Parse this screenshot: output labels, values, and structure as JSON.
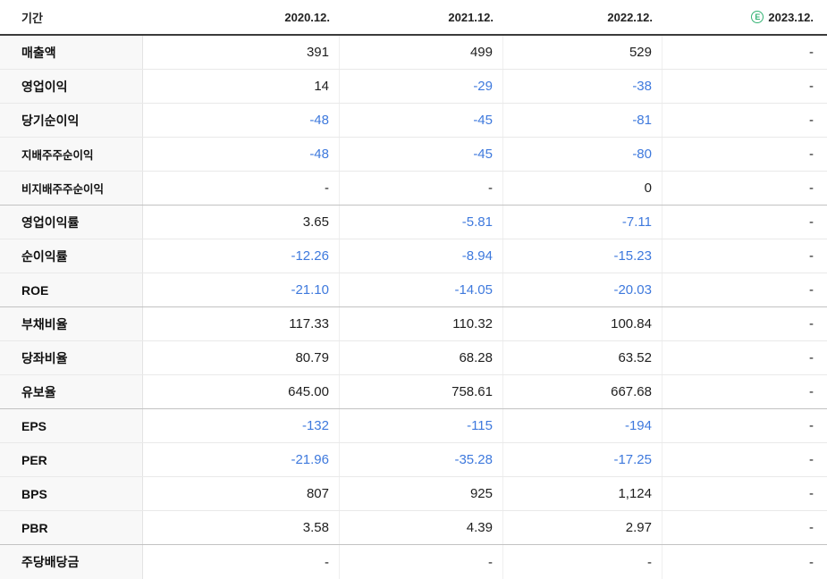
{
  "colors": {
    "negative_value": "#3e79dd",
    "positive_value": "#1e1e1e",
    "estimate_green": "#35b374",
    "label_column_bg": "#f8f8f8",
    "header_rule": "#3b3b3b"
  },
  "table": {
    "header": {
      "period_label": "기간",
      "estimate_badge": "E",
      "columns": [
        "2020.12.",
        "2021.12.",
        "2022.12.",
        "2023.12."
      ]
    },
    "rows": [
      {
        "label": "매출액",
        "sub": false,
        "group_end": false,
        "values": [
          "391",
          "499",
          "529",
          "-"
        ]
      },
      {
        "label": "영업이익",
        "sub": false,
        "group_end": false,
        "values": [
          "14",
          "-29",
          "-38",
          "-"
        ]
      },
      {
        "label": "당기순이익",
        "sub": false,
        "group_end": false,
        "values": [
          "-48",
          "-45",
          "-81",
          "-"
        ]
      },
      {
        "label": "지배주주순이익",
        "sub": true,
        "group_end": false,
        "values": [
          "-48",
          "-45",
          "-80",
          "-"
        ]
      },
      {
        "label": "비지배주주순이익",
        "sub": true,
        "group_end": true,
        "values": [
          "-",
          "-",
          "0",
          "-"
        ]
      },
      {
        "label": "영업이익률",
        "sub": false,
        "group_end": false,
        "values": [
          "3.65",
          "-5.81",
          "-7.11",
          "-"
        ]
      },
      {
        "label": "순이익률",
        "sub": false,
        "group_end": false,
        "values": [
          "-12.26",
          "-8.94",
          "-15.23",
          "-"
        ]
      },
      {
        "label": "ROE",
        "sub": false,
        "group_end": true,
        "values": [
          "-21.10",
          "-14.05",
          "-20.03",
          "-"
        ]
      },
      {
        "label": "부채비율",
        "sub": false,
        "group_end": false,
        "values": [
          "117.33",
          "110.32",
          "100.84",
          "-"
        ]
      },
      {
        "label": "당좌비율",
        "sub": false,
        "group_end": false,
        "values": [
          "80.79",
          "68.28",
          "63.52",
          "-"
        ]
      },
      {
        "label": "유보율",
        "sub": false,
        "group_end": true,
        "values": [
          "645.00",
          "758.61",
          "667.68",
          "-"
        ]
      },
      {
        "label": "EPS",
        "sub": false,
        "group_end": false,
        "values": [
          "-132",
          "-115",
          "-194",
          "-"
        ]
      },
      {
        "label": "PER",
        "sub": false,
        "group_end": false,
        "values": [
          "-21.96",
          "-35.28",
          "-17.25",
          "-"
        ]
      },
      {
        "label": "BPS",
        "sub": false,
        "group_end": false,
        "values": [
          "807",
          "925",
          "1,124",
          "-"
        ]
      },
      {
        "label": "PBR",
        "sub": false,
        "group_end": true,
        "values": [
          "3.58",
          "4.39",
          "2.97",
          "-"
        ]
      },
      {
        "label": "주당배당금",
        "sub": false,
        "group_end": false,
        "values": [
          "-",
          "-",
          "-",
          "-"
        ]
      }
    ]
  }
}
